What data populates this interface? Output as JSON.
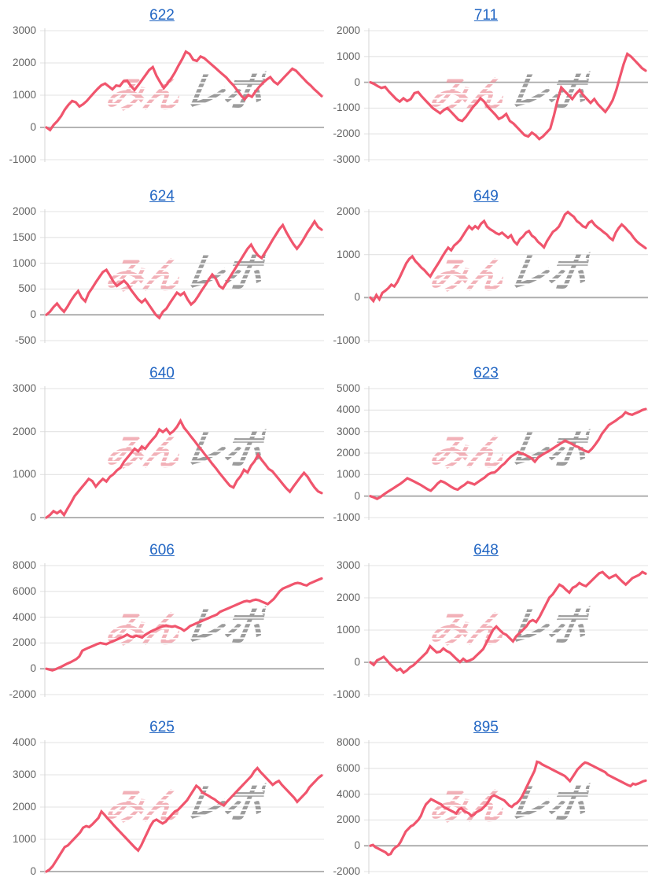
{
  "watermark": {
    "pink": "みん",
    "gray": "レポ"
  },
  "style": {
    "title_color": "#2266c3",
    "line_color": "#F0556D",
    "grid_line": "#e3e3e3",
    "zero_line": "#aaaaaa",
    "axis_line": "#d8d8d8",
    "label_color": "#646464",
    "watermark_pink": "#e97d88",
    "watermark_gray": "#808080"
  },
  "chart_data": [
    {
      "type": "line",
      "title": "622",
      "xlabel": "",
      "ylabel": "",
      "y_ticks": [
        3000,
        2000,
        1000,
        0,
        -1000
      ],
      "ylim": [
        -1000,
        3000
      ],
      "grid": true,
      "legend": "none",
      "values": [
        0,
        -80,
        80,
        200,
        350,
        550,
        700,
        820,
        780,
        650,
        720,
        820,
        950,
        1080,
        1200,
        1310,
        1360,
        1270,
        1180,
        1300,
        1280,
        1430,
        1450,
        1290,
        1160,
        1310,
        1460,
        1620,
        1780,
        1870,
        1600,
        1400,
        1220,
        1360,
        1520,
        1700,
        1920,
        2120,
        2350,
        2280,
        2100,
        2060,
        2200,
        2150,
        2050,
        1950,
        1850,
        1750,
        1650,
        1550,
        1420,
        1300,
        1150,
        1000,
        870,
        1010,
        950,
        1120,
        1260,
        1380,
        1480,
        1560,
        1420,
        1340,
        1460,
        1580,
        1700,
        1820,
        1760,
        1640,
        1520,
        1400,
        1300,
        1180,
        1080,
        970
      ]
    },
    {
      "type": "line",
      "title": "711",
      "xlabel": "",
      "ylabel": "",
      "y_ticks": [
        2000,
        1000,
        0,
        -1000,
        -2000,
        -3000
      ],
      "ylim": [
        -3000,
        2000
      ],
      "grid": true,
      "legend": "none",
      "values": [
        0,
        -60,
        -150,
        -220,
        -180,
        -350,
        -500,
        -650,
        -750,
        -620,
        -730,
        -650,
        -420,
        -380,
        -550,
        -700,
        -850,
        -1000,
        -1100,
        -1200,
        -1080,
        -1000,
        -1150,
        -1300,
        -1450,
        -1500,
        -1350,
        -1150,
        -950,
        -800,
        -620,
        -750,
        -950,
        -1100,
        -1250,
        -1420,
        -1350,
        -1230,
        -1500,
        -1600,
        -1750,
        -1900,
        -2050,
        -2100,
        -1950,
        -2050,
        -2200,
        -2100,
        -1950,
        -1800,
        -1300,
        -700,
        -200,
        -350,
        -500,
        -650,
        -450,
        -300,
        -500,
        -650,
        -800,
        -650,
        -850,
        -1000,
        -1150,
        -950,
        -700,
        -300,
        200,
        700,
        1100,
        1000,
        850,
        700,
        550,
        450
      ]
    },
    {
      "type": "line",
      "title": "624",
      "xlabel": "",
      "ylabel": "",
      "y_ticks": [
        2000,
        1500,
        1000,
        500,
        0,
        -500
      ],
      "ylim": [
        -500,
        2000
      ],
      "grid": true,
      "legend": "none",
      "values": [
        0,
        60,
        150,
        220,
        130,
        60,
        160,
        280,
        380,
        460,
        330,
        260,
        420,
        520,
        630,
        730,
        830,
        870,
        760,
        640,
        560,
        610,
        660,
        590,
        480,
        390,
        300,
        240,
        300,
        200,
        100,
        0,
        -60,
        60,
        120,
        230,
        330,
        430,
        380,
        430,
        300,
        200,
        260,
        360,
        470,
        570,
        680,
        780,
        700,
        560,
        510,
        620,
        730,
        840,
        950,
        1060,
        1170,
        1280,
        1360,
        1240,
        1150,
        1100,
        1210,
        1320,
        1440,
        1550,
        1660,
        1740,
        1600,
        1480,
        1370,
        1280,
        1370,
        1480,
        1600,
        1700,
        1810,
        1700,
        1650
      ]
    },
    {
      "type": "line",
      "title": "649",
      "xlabel": "",
      "ylabel": "",
      "y_ticks": [
        2000,
        1000,
        0,
        -1000
      ],
      "ylim": [
        -1000,
        2000
      ],
      "grid": true,
      "legend": "none",
      "values": [
        0,
        -80,
        60,
        -40,
        110,
        160,
        220,
        300,
        260,
        360,
        500,
        650,
        800,
        900,
        960,
        850,
        780,
        700,
        640,
        560,
        490,
        610,
        720,
        830,
        950,
        1060,
        1160,
        1100,
        1210,
        1270,
        1340,
        1450,
        1560,
        1660,
        1590,
        1660,
        1610,
        1720,
        1780,
        1650,
        1590,
        1550,
        1500,
        1470,
        1510,
        1450,
        1390,
        1450,
        1310,
        1240,
        1360,
        1420,
        1510,
        1550,
        1440,
        1390,
        1300,
        1240,
        1170,
        1310,
        1420,
        1530,
        1580,
        1650,
        1780,
        1930,
        1990,
        1930,
        1880,
        1780,
        1730,
        1660,
        1630,
        1740,
        1780,
        1690,
        1630,
        1580,
        1520,
        1470,
        1390,
        1340,
        1510,
        1620,
        1700,
        1640,
        1560,
        1490,
        1390,
        1310,
        1250,
        1200,
        1150
      ]
    },
    {
      "type": "line",
      "title": "640",
      "xlabel": "",
      "ylabel": "",
      "y_ticks": [
        3000,
        2000,
        1000,
        0
      ],
      "ylim": [
        0,
        3000
      ],
      "grid": true,
      "legend": "none",
      "values": [
        0,
        60,
        150,
        100,
        160,
        60,
        210,
        350,
        500,
        600,
        700,
        800,
        900,
        850,
        720,
        820,
        900,
        840,
        950,
        1010,
        1100,
        1160,
        1300,
        1400,
        1500,
        1600,
        1540,
        1650,
        1600,
        1710,
        1810,
        1900,
        2050,
        1990,
        2060,
        1950,
        2010,
        2110,
        2250,
        2090,
        1990,
        1880,
        1780,
        1670,
        1570,
        1460,
        1360,
        1250,
        1150,
        1040,
        940,
        840,
        740,
        700,
        860,
        960,
        1110,
        1050,
        1210,
        1310,
        1460,
        1340,
        1240,
        1130,
        1080,
        980,
        880,
        780,
        680,
        600,
        720,
        830,
        940,
        1040,
        950,
        820,
        700,
        610,
        570
      ]
    },
    {
      "type": "line",
      "title": "623",
      "xlabel": "",
      "ylabel": "",
      "y_ticks": [
        5000,
        4000,
        3000,
        2000,
        1000,
        0,
        -1000
      ],
      "ylim": [
        -1000,
        5000
      ],
      "grid": true,
      "legend": "none",
      "values": [
        0,
        -60,
        -130,
        -40,
        80,
        180,
        280,
        380,
        480,
        580,
        700,
        830,
        760,
        680,
        600,
        520,
        420,
        320,
        250,
        400,
        580,
        700,
        640,
        540,
        440,
        350,
        300,
        420,
        520,
        650,
        600,
        540,
        650,
        760,
        860,
        1000,
        1080,
        1100,
        1230,
        1400,
        1520,
        1700,
        1850,
        1950,
        2050,
        1980,
        1930,
        1850,
        1760,
        1600,
        1800,
        1900,
        2000,
        2080,
        2180,
        2280,
        2380,
        2480,
        2580,
        2500,
        2430,
        2330,
        2280,
        2180,
        2100,
        2050,
        2200,
        2400,
        2620,
        2900,
        3100,
        3300,
        3400,
        3500,
        3620,
        3720,
        3900,
        3820,
        3780,
        3860,
        3920,
        4000,
        4050
      ]
    },
    {
      "type": "line",
      "title": "606",
      "xlabel": "",
      "ylabel": "",
      "y_ticks": [
        8000,
        6000,
        4000,
        2000,
        0,
        -2000
      ],
      "ylim": [
        -2000,
        8000
      ],
      "grid": true,
      "legend": "none",
      "values": [
        0,
        -60,
        -120,
        -40,
        60,
        160,
        280,
        400,
        500,
        620,
        750,
        950,
        1400,
        1520,
        1620,
        1720,
        1820,
        1920,
        2000,
        1950,
        1900,
        2010,
        2110,
        2210,
        2310,
        2420,
        2520,
        2650,
        2520,
        2460,
        2560,
        2500,
        2420,
        2620,
        2760,
        2900,
        3010,
        3110,
        3210,
        3310,
        3360,
        3300,
        3260,
        3310,
        3210,
        3110,
        2960,
        3110,
        3310,
        3410,
        3510,
        3610,
        3710,
        3810,
        3910,
        4010,
        4110,
        4210,
        4410,
        4510,
        4610,
        4710,
        4810,
        4910,
        5010,
        5110,
        5210,
        5260,
        5210,
        5310,
        5360,
        5310,
        5210,
        5110,
        5010,
        5210,
        5410,
        5710,
        6010,
        6210,
        6310,
        6410,
        6510,
        6610,
        6660,
        6610,
        6510,
        6460,
        6610,
        6710,
        6810,
        6910,
        7000
      ]
    },
    {
      "type": "line",
      "title": "648",
      "xlabel": "",
      "ylabel": "",
      "y_ticks": [
        3000,
        2000,
        1000,
        0,
        -1000
      ],
      "ylim": [
        -1000,
        3000
      ],
      "grid": true,
      "legend": "none",
      "values": [
        0,
        -80,
        60,
        110,
        170,
        60,
        -60,
        -160,
        -250,
        -200,
        -320,
        -250,
        -150,
        -90,
        10,
        110,
        210,
        310,
        500,
        400,
        310,
        330,
        430,
        350,
        300,
        200,
        100,
        10,
        110,
        30,
        60,
        110,
        210,
        310,
        410,
        610,
        810,
        1010,
        1110,
        1000,
        900,
        850,
        750,
        650,
        810,
        910,
        1010,
        1110,
        1260,
        1310,
        1250,
        1410,
        1610,
        1810,
        2010,
        2110,
        2260,
        2410,
        2350,
        2250,
        2160,
        2310,
        2360,
        2460,
        2400,
        2360,
        2460,
        2560,
        2660,
        2760,
        2800,
        2700,
        2610,
        2660,
        2710,
        2600,
        2500,
        2410,
        2510,
        2610,
        2660,
        2710,
        2800,
        2750
      ]
    },
    {
      "type": "line",
      "title": "625",
      "xlabel": "",
      "ylabel": "",
      "y_ticks": [
        4000,
        3000,
        2000,
        1000,
        0
      ],
      "ylim": [
        0,
        4000
      ],
      "grid": true,
      "legend": "none",
      "values": [
        0,
        60,
        160,
        310,
        460,
        610,
        760,
        810,
        910,
        1010,
        1110,
        1210,
        1360,
        1410,
        1380,
        1460,
        1560,
        1660,
        1860,
        1760,
        1650,
        1550,
        1440,
        1340,
        1240,
        1140,
        1040,
        940,
        840,
        740,
        650,
        810,
        1010,
        1210,
        1410,
        1560,
        1610,
        1550,
        1490,
        1550,
        1660,
        1760,
        1860,
        1910,
        2010,
        2110,
        2210,
        2360,
        2510,
        2660,
        2590,
        2450,
        2400,
        2350,
        2290,
        2240,
        2160,
        2100,
        2050,
        2160,
        2260,
        2360,
        2460,
        2560,
        2660,
        2760,
        2860,
        2960,
        3110,
        3210,
        3090,
        2990,
        2890,
        2790,
        2690,
        2760,
        2810,
        2690,
        2590,
        2490,
        2390,
        2290,
        2160,
        2260,
        2360,
        2460,
        2610,
        2710,
        2810,
        2910,
        2980
      ]
    },
    {
      "type": "line",
      "title": "895",
      "xlabel": "",
      "ylabel": "",
      "y_ticks": [
        8000,
        6000,
        4000,
        2000,
        0,
        -2000
      ],
      "ylim": [
        -2000,
        8000
      ],
      "grid": true,
      "legend": "none",
      "values": [
        0,
        60,
        -110,
        -210,
        -310,
        -410,
        -510,
        -700,
        -640,
        -300,
        -110,
        10,
        310,
        710,
        1110,
        1310,
        1510,
        1610,
        1810,
        2010,
        2310,
        2810,
        3210,
        3410,
        3610,
        3510,
        3410,
        3310,
        3210,
        3010,
        2910,
        2810,
        2710,
        2610,
        2510,
        2810,
        2910,
        2710,
        2610,
        2510,
        2310,
        2410,
        2610,
        2710,
        2810,
        3010,
        3210,
        3510,
        3810,
        3910,
        3810,
        3710,
        3610,
        3510,
        3310,
        3110,
        3010,
        3210,
        3310,
        3510,
        3810,
        4210,
        4610,
        5010,
        5410,
        5810,
        6510,
        6450,
        6310,
        6210,
        6110,
        6010,
        5910,
        5810,
        5710,
        5610,
        5510,
        5410,
        5210,
        5010,
        5310,
        5610,
        5910,
        6110,
        6310,
        6450,
        6400,
        6300,
        6200,
        6100,
        6000,
        5900,
        5800,
        5700,
        5500,
        5400,
        5300,
        5200,
        5100,
        5000,
        4900,
        4800,
        4700,
        4620,
        4810,
        4750,
        4820,
        4900,
        5000,
        5050
      ]
    }
  ]
}
